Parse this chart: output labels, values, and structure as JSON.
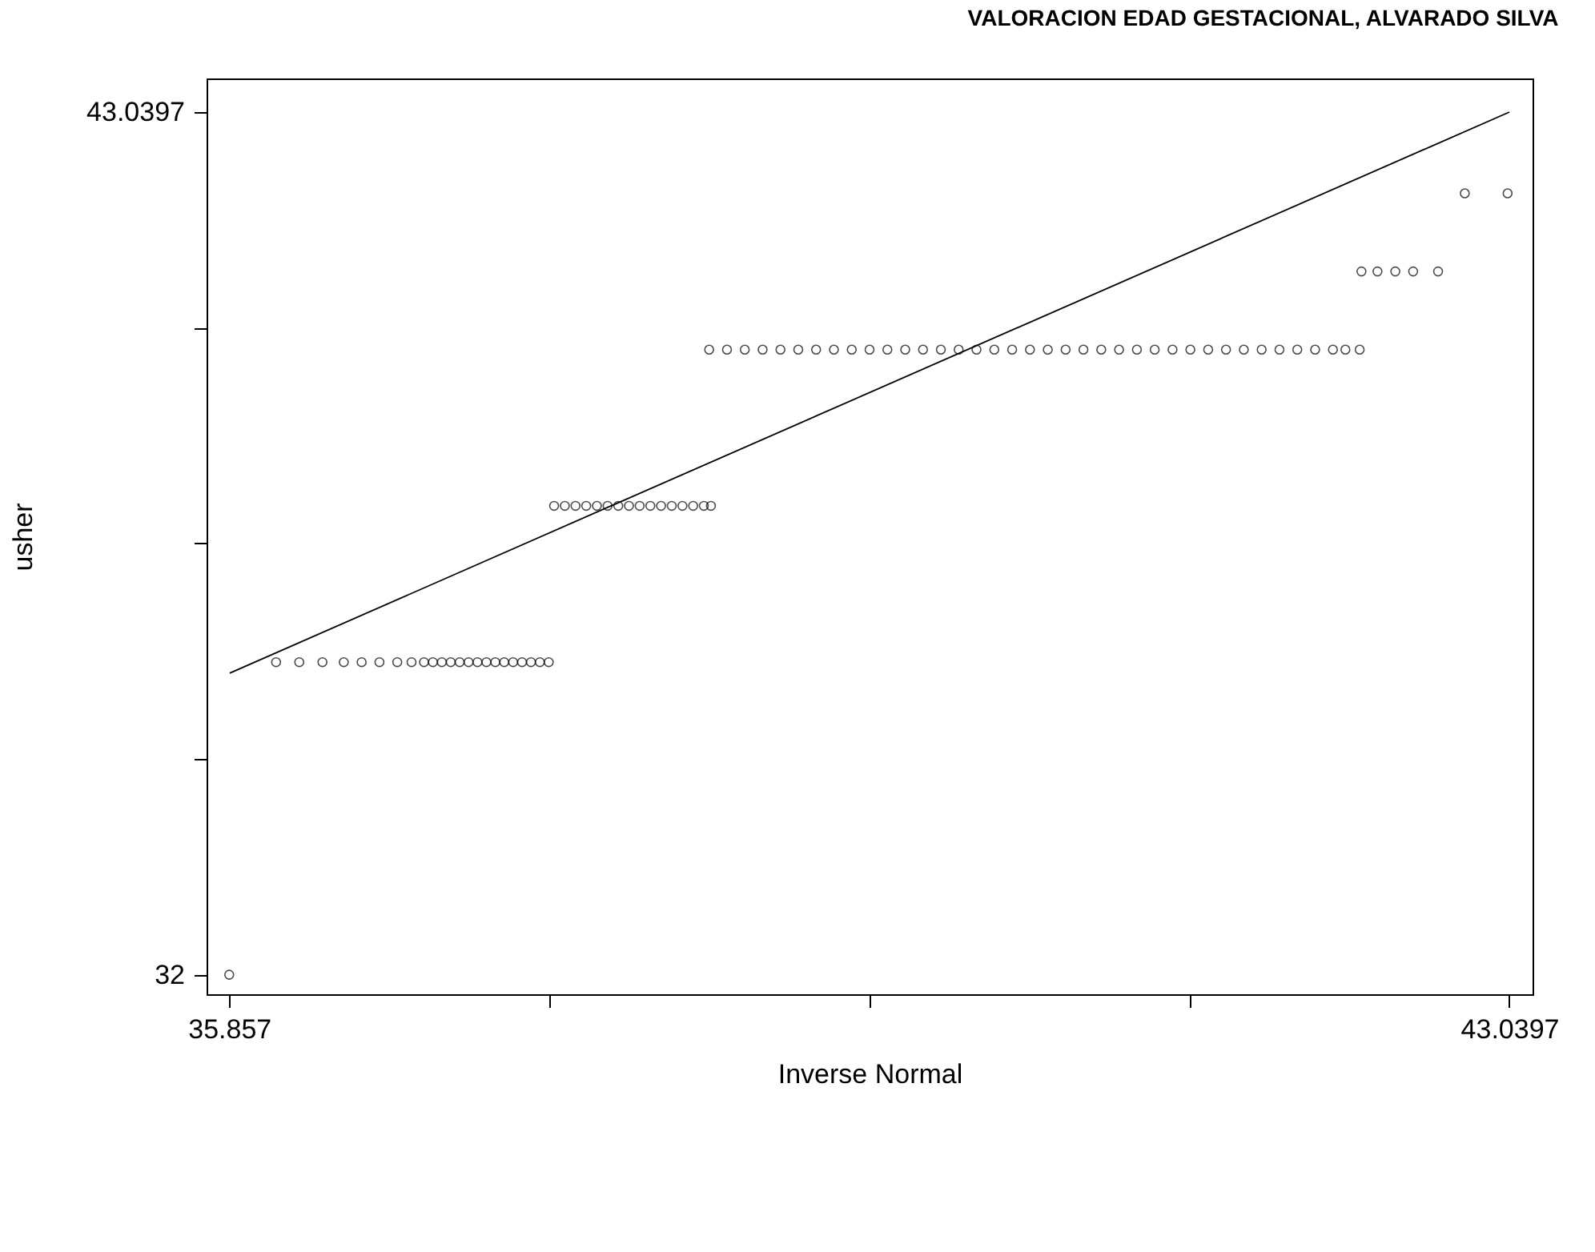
{
  "chart_data": {
    "type": "scatter",
    "title": "VALORACION EDAD GESTACIONAL, ALVARADO SILVA",
    "xlabel": "Inverse Normal",
    "ylabel": "usher",
    "xlim": [
      35.73,
      43.17
    ],
    "ylim": [
      31.75,
      43.47
    ],
    "xticks": [
      35.857,
      {
        "value": 37.653,
        "label": null
      },
      {
        "value": 39.448,
        "label": null
      },
      {
        "value": 41.244,
        "label": null
      },
      43.0397
    ],
    "yticks": [
      32,
      {
        "value": 34.76,
        "label": null
      },
      {
        "value": 37.52,
        "label": null
      },
      {
        "value": 40.28,
        "label": null
      },
      43.0397
    ],
    "grid": false,
    "marker": "circle",
    "series": [
      {
        "color": "#000000",
        "x": [
          35.857,
          36.12,
          36.25,
          36.38,
          36.5,
          36.6,
          36.7,
          36.8,
          36.88,
          36.95,
          37.0,
          37.05,
          37.1,
          37.15,
          37.2,
          37.25,
          37.3,
          37.35,
          37.4,
          37.45,
          37.5,
          37.55,
          37.6,
          37.65
        ],
        "values": [
          32,
          36,
          36,
          36,
          36,
          36,
          36,
          36,
          36,
          36,
          36,
          36,
          36,
          36,
          36,
          36,
          36,
          36,
          36,
          36,
          36,
          36,
          36,
          36
        ]
      },
      {
        "color": "#000000",
        "x": [
          37.68,
          37.74,
          37.8,
          37.86,
          37.92,
          37.98,
          38.04,
          38.1,
          38.16,
          38.22,
          38.28,
          38.34,
          38.4,
          38.46,
          38.52,
          38.56
        ],
        "values": [
          38,
          38,
          38,
          38,
          38,
          38,
          38,
          38,
          38,
          38,
          38,
          38,
          38,
          38,
          38,
          38
        ]
      },
      {
        "color": "#000000",
        "x": [
          38.55,
          38.65,
          38.75,
          38.85,
          38.95,
          39.05,
          39.15,
          39.25,
          39.35,
          39.45,
          39.55,
          39.65,
          39.75,
          39.85,
          39.95,
          40.05,
          40.15,
          40.25,
          40.35,
          40.45,
          40.55,
          40.65,
          40.75,
          40.85,
          40.95,
          41.05,
          41.15,
          41.25,
          41.35,
          41.45,
          41.55,
          41.65,
          41.75,
          41.85,
          41.95,
          42.05,
          42.12,
          42.2
        ],
        "values": [
          40,
          40,
          40,
          40,
          40,
          40,
          40,
          40,
          40,
          40,
          40,
          40,
          40,
          40,
          40,
          40,
          40,
          40,
          40,
          40,
          40,
          40,
          40,
          40,
          40,
          40,
          40,
          40,
          40,
          40,
          40,
          40,
          40,
          40,
          40,
          40,
          40,
          40
        ]
      },
      {
        "color": "#000000",
        "x": [
          42.21,
          42.3,
          42.4,
          42.5,
          42.64,
          42.79,
          43.03
        ],
        "values": [
          41,
          41,
          41,
          41,
          41,
          42,
          42
        ]
      },
      {
        "type": "line",
        "color": "#000000",
        "line_style": "solid",
        "marker": "none",
        "x": [
          35.86,
          43.04
        ],
        "values": [
          35.86,
          43.04
        ]
      }
    ]
  }
}
